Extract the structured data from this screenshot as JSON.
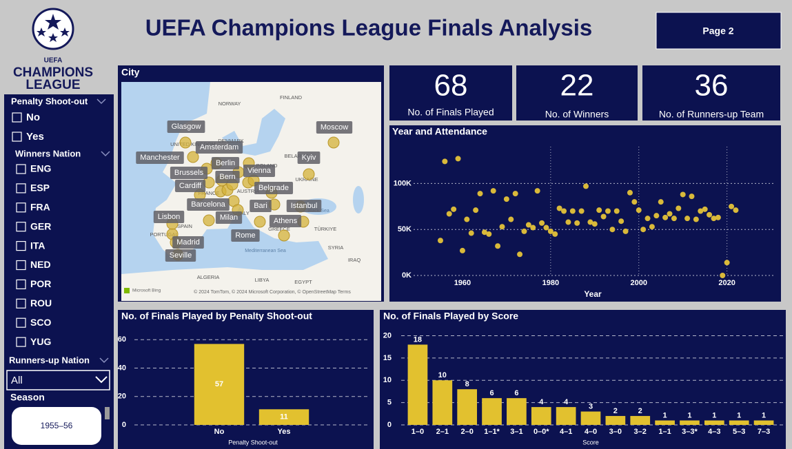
{
  "header": {
    "logo": {
      "line1": "UEFA",
      "line2": "CHAMPIONS",
      "line3": "LEAGUE"
    },
    "title": "UEFA Champions League Finals Analysis",
    "page_button": "Page 2"
  },
  "filters": {
    "penalty": {
      "title": "Penalty Shoot-out",
      "options": [
        "No",
        "Yes"
      ]
    },
    "winners": {
      "title": "Winners Nation",
      "options": [
        "ENG",
        "ESP",
        "FRA",
        "GER",
        "ITA",
        "NED",
        "POR",
        "ROU",
        "SCO",
        "YUG"
      ]
    },
    "runners_up": {
      "title": "Runners-up Nation",
      "selected": "All"
    },
    "season": {
      "title": "Season",
      "selected": "1955–56"
    }
  },
  "map": {
    "title": "City",
    "cities": [
      "Glasgow",
      "Moscow",
      "Amsterdam",
      "Manchester",
      "Berlin",
      "Kyiv",
      "Brussels",
      "Bern",
      "Vienna",
      "Cardiff",
      "Belgrade",
      "Barcelona",
      "Istanbul",
      "Bari",
      "Lisbon",
      "Milan",
      "Athens",
      "Rome",
      "Madrid",
      "Seville"
    ],
    "regions": [
      "NORWAY",
      "FINLAND",
      "DENMARK",
      "UNITED KINGDOM",
      "BELARUS",
      "POLAND",
      "UKRAINE",
      "FRANCE",
      "AUSTRIA",
      "SPAIN",
      "PORTUGAL",
      "ITALY",
      "GREECE",
      "TÜRKIYE",
      "SYRIA",
      "IRAQ",
      "ALGERIA",
      "LIBYA",
      "EGYPT",
      "Mediterranean Sea",
      "Black Sea"
    ],
    "credit": "Microsoft Bing",
    "attribution": "© 2024 TomTom, © 2024 Microsoft Corporation, © OpenStreetMap  Terms"
  },
  "kpis": [
    {
      "value": 68,
      "label": "No. of Finals Played"
    },
    {
      "value": 22,
      "label": "No. of Winners"
    },
    {
      "value": 36,
      "label": "No. of Runners-up Team"
    }
  ],
  "chart_data": [
    {
      "type": "scatter",
      "title": "Year and Attendance",
      "x_label": "Year",
      "color": "#d9b93a",
      "grid": true,
      "x": [
        1955,
        1956,
        1957,
        1958,
        1959,
        1960,
        1961,
        1962,
        1963,
        1964,
        1965,
        1966,
        1967,
        1968,
        1969,
        1970,
        1971,
        1972,
        1973,
        1974,
        1975,
        1976,
        1977,
        1978,
        1979,
        1980,
        1981,
        1982,
        1983,
        1984,
        1985,
        1986,
        1987,
        1988,
        1989,
        1990,
        1991,
        1992,
        1993,
        1994,
        1995,
        1996,
        1997,
        1998,
        1999,
        2000,
        2001,
        2002,
        2003,
        2004,
        2005,
        2006,
        2007,
        2008,
        2009,
        2010,
        2011,
        2012,
        2013,
        2014,
        2015,
        2016,
        2017,
        2018,
        2019,
        2020,
        2021,
        2022
      ],
      "values": [
        38000,
        124000,
        67000,
        72000,
        127000,
        27000,
        61000,
        46000,
        71000,
        89000,
        47000,
        45000,
        92000,
        32000,
        53000,
        83000,
        61000,
        89000,
        23000,
        48000,
        55000,
        52000,
        92000,
        57000,
        52000,
        48000,
        45000,
        73000,
        70000,
        58000,
        70000,
        57000,
        70000,
        97000,
        58000,
        56000,
        71000,
        64000,
        70000,
        50000,
        70000,
        59000,
        48000,
        90000,
        80000,
        71000,
        50000,
        62000,
        53000,
        65000,
        80000,
        63000,
        67000,
        62000,
        73000,
        88000,
        62000,
        86000,
        61000,
        70000,
        72000,
        66000,
        62000,
        63000,
        0,
        14000,
        75000,
        71000
      ],
      "xlim": [
        1945,
        2031
      ],
      "xticks": [
        1960,
        1980,
        2000,
        2020
      ],
      "ylim": [
        0,
        140000
      ],
      "yticks": [
        {
          "value": 0,
          "label": "0K"
        },
        {
          "value": 50000,
          "label": "50K"
        },
        {
          "value": 100000,
          "label": "100K"
        }
      ]
    },
    {
      "type": "bar",
      "title": "No. of Finals Played by Penalty Shoot-out",
      "x_label": "Penalty Shoot-out",
      "color": "#e2c12f",
      "grid": true,
      "categories": [
        "No",
        "Yes"
      ],
      "values": [
        57,
        11
      ],
      "ylim": [
        0,
        64
      ],
      "yticks": [
        0,
        20,
        40,
        60
      ]
    },
    {
      "type": "bar",
      "title": "No. of Finals Played by Score",
      "x_label": "Score",
      "color": "#e2c12f",
      "grid": true,
      "categories": [
        "1–0",
        "2–1",
        "2–0",
        "1–1*",
        "3–1",
        "0–0*",
        "4–1",
        "4–0",
        "3–0",
        "3–2",
        "1–1",
        "3–3*",
        "4–3",
        "5–3",
        "7–3"
      ],
      "values": [
        18,
        10,
        8,
        6,
        6,
        4,
        4,
        3,
        2,
        2,
        1,
        1,
        1,
        1,
        1
      ],
      "ylim": [
        0,
        21
      ],
      "yticks": [
        0,
        5,
        10,
        15,
        20
      ]
    }
  ]
}
